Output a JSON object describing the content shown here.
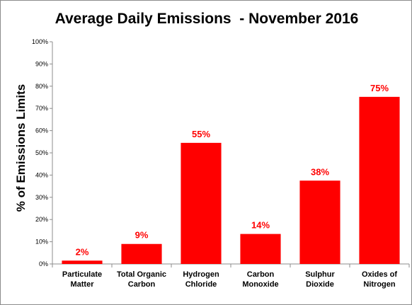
{
  "chart_data": {
    "type": "bar",
    "title": "Average Daily Emissions  - November 2016",
    "ylabel": "% of Emissions Limits",
    "xlabel": "",
    "categories": [
      [
        "Particulate",
        "Matter"
      ],
      [
        "Total Organic",
        "Carbon"
      ],
      [
        "Hydrogen",
        "Chloride"
      ],
      [
        "Carbon",
        "Monoxide"
      ],
      [
        "Sulphur",
        "Dioxide"
      ],
      [
        "Oxides of",
        "Nitrogen"
      ]
    ],
    "values": [
      1.5,
      9,
      54.5,
      13.5,
      37.5,
      75.2
    ],
    "data_labels": [
      "2%",
      "9%",
      "55%",
      "14%",
      "38%",
      "75%"
    ],
    "ylim": [
      0,
      100
    ],
    "yticks": [
      0,
      10,
      20,
      30,
      40,
      50,
      60,
      70,
      80,
      90,
      100
    ],
    "ytick_labels": [
      "0%",
      "10%",
      "20%",
      "30%",
      "40%",
      "50%",
      "60%",
      "70%",
      "80%",
      "90%",
      "100%"
    ],
    "bar_color": "#ff0000",
    "label_color": "#ff0000",
    "grid": false,
    "legend": "none"
  }
}
